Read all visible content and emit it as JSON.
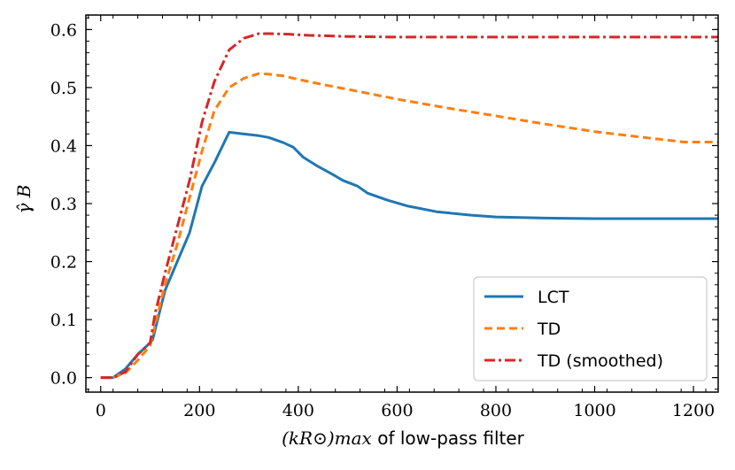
{
  "chart_data": {
    "type": "line",
    "title": "",
    "xlabel_math": "(kR⊙)max",
    "xlabel_text": " of low-pass filter",
    "ylabel": "γ̂ B",
    "xlim": [
      -30,
      1250
    ],
    "ylim": [
      -0.025,
      0.625
    ],
    "xticks": [
      0,
      200,
      400,
      600,
      800,
      1000,
      1200
    ],
    "xtick_labels": [
      "0",
      "200",
      "400",
      "600",
      "800",
      "1000",
      "1200"
    ],
    "yticks": [
      0.0,
      0.1,
      0.2,
      0.3,
      0.4,
      0.5,
      0.6
    ],
    "ytick_labels": [
      "0.0",
      "0.1",
      "0.2",
      "0.3",
      "0.4",
      "0.5",
      "0.6"
    ],
    "legend_position": "bottom-right",
    "series": [
      {
        "name": "LCT",
        "color": "#1f77b4",
        "style": "solid",
        "x": [
          0,
          25,
          50,
          75,
          100,
          105,
          130,
          155,
          180,
          205,
          230,
          260,
          290,
          320,
          340,
          370,
          390,
          410,
          440,
          470,
          490,
          520,
          540,
          580,
          620,
          680,
          750,
          800,
          900,
          1000,
          1100,
          1200,
          1250
        ],
        "y": [
          0.0,
          0.0,
          0.015,
          0.04,
          0.06,
          0.065,
          0.15,
          0.2,
          0.25,
          0.33,
          0.37,
          0.423,
          0.42,
          0.417,
          0.414,
          0.405,
          0.397,
          0.38,
          0.364,
          0.35,
          0.34,
          0.33,
          0.318,
          0.306,
          0.296,
          0.286,
          0.28,
          0.277,
          0.275,
          0.274,
          0.274,
          0.274,
          0.274
        ]
      },
      {
        "name": "TD",
        "color": "#ff7f0e",
        "style": "dashed",
        "x": [
          0,
          25,
          50,
          75,
          100,
          110,
          130,
          155,
          180,
          205,
          230,
          260,
          290,
          320,
          340,
          370,
          400,
          450,
          500,
          600,
          700,
          800,
          900,
          1000,
          1100,
          1180,
          1250
        ],
        "y": [
          0.0,
          0.0,
          0.008,
          0.03,
          0.055,
          0.09,
          0.16,
          0.23,
          0.31,
          0.39,
          0.46,
          0.5,
          0.516,
          0.524,
          0.523,
          0.52,
          0.514,
          0.505,
          0.497,
          0.48,
          0.465,
          0.451,
          0.437,
          0.424,
          0.414,
          0.406,
          0.406
        ]
      },
      {
        "name": "TD (smoothed)",
        "color": "#d62728",
        "style": "dashdot",
        "x": [
          0,
          25,
          50,
          75,
          100,
          110,
          130,
          155,
          180,
          205,
          230,
          260,
          290,
          320,
          340,
          380,
          420,
          500,
          600,
          800,
          1000,
          1200,
          1250
        ],
        "y": [
          0.0,
          0.0,
          0.01,
          0.04,
          0.06,
          0.11,
          0.18,
          0.26,
          0.34,
          0.44,
          0.51,
          0.565,
          0.585,
          0.593,
          0.593,
          0.592,
          0.59,
          0.588,
          0.587,
          0.587,
          0.587,
          0.587,
          0.587
        ]
      }
    ]
  }
}
